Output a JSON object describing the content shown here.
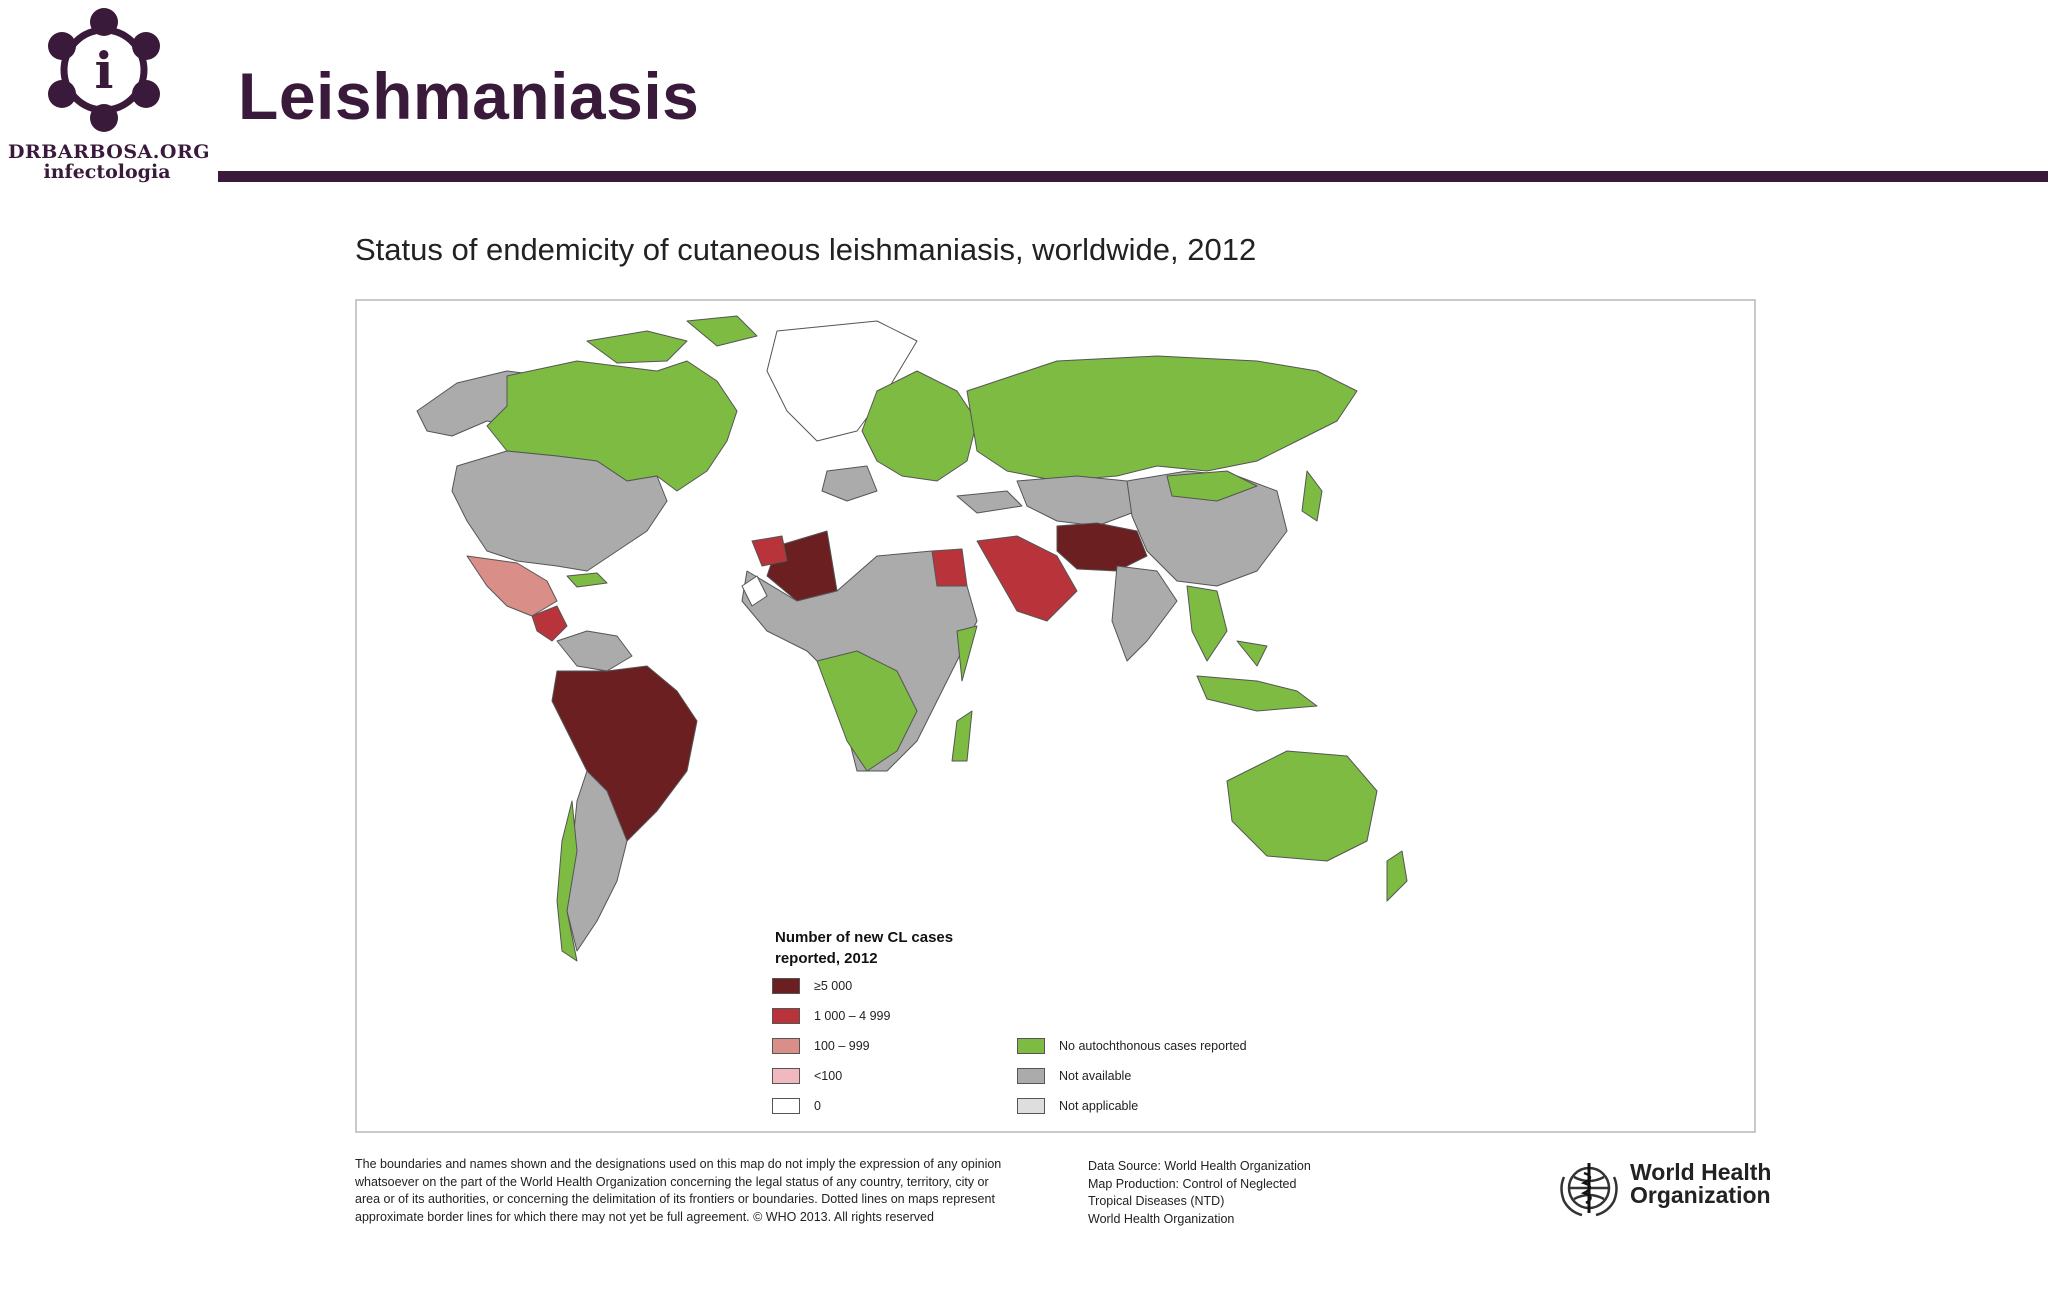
{
  "header": {
    "logo_line1": "DRBARBOSA.ORG",
    "logo_line2": "infectologia",
    "logo_glyph": "i",
    "title": "Leishmaniasis"
  },
  "map": {
    "caption": "Status of endemicity of cutaneous leishmaniasis, worldwide, 2012",
    "legend": {
      "heading": "Number of new CL cases reported, 2012",
      "items": [
        {
          "label": "≥5 000",
          "color": "#6b1f21"
        },
        {
          "label": "1 000 – 4 999",
          "color": "#b8343a"
        },
        {
          "label": "100 – 999",
          "color": "#d98e88"
        },
        {
          "label": "<100",
          "color": "#f2b8c0"
        },
        {
          "label": "0",
          "color": "#ffffff"
        }
      ],
      "other_items": [
        {
          "label": "No autochthonous cases reported",
          "color": "#7dbb42"
        },
        {
          "label": "Not available",
          "color": "#ababab"
        },
        {
          "label": "Not applicable",
          "color": "#dedede"
        }
      ]
    }
  },
  "footer": {
    "disclaimer": "The boundaries and names shown and the designations used on this map do not imply the expression of any opinion whatsoever on the part of the World Health Organization concerning the legal status of any country, territory, city or area or of its authorities, or concerning the delimitation of its frontiers or boundaries. Dotted lines on maps represent approximate border lines for which there may not yet be full agreement. © WHO 2013. All rights reserved",
    "source_lines": [
      "Data Source: World Health Organization",
      "Map Production: Control of Neglected",
      "Tropical Diseases (NTD)",
      "World Health Organization"
    ],
    "who_line1": "World Health",
    "who_line2": "Organization"
  },
  "colors": {
    "brand": "#3a1a3a",
    "very_high": "#6b1f21",
    "high": "#b8343a",
    "moderate": "#d98e88",
    "low": "#f2b8c0",
    "no_cases": "#7dbb42",
    "not_available": "#ababab",
    "not_applicable": "#dedede"
  }
}
